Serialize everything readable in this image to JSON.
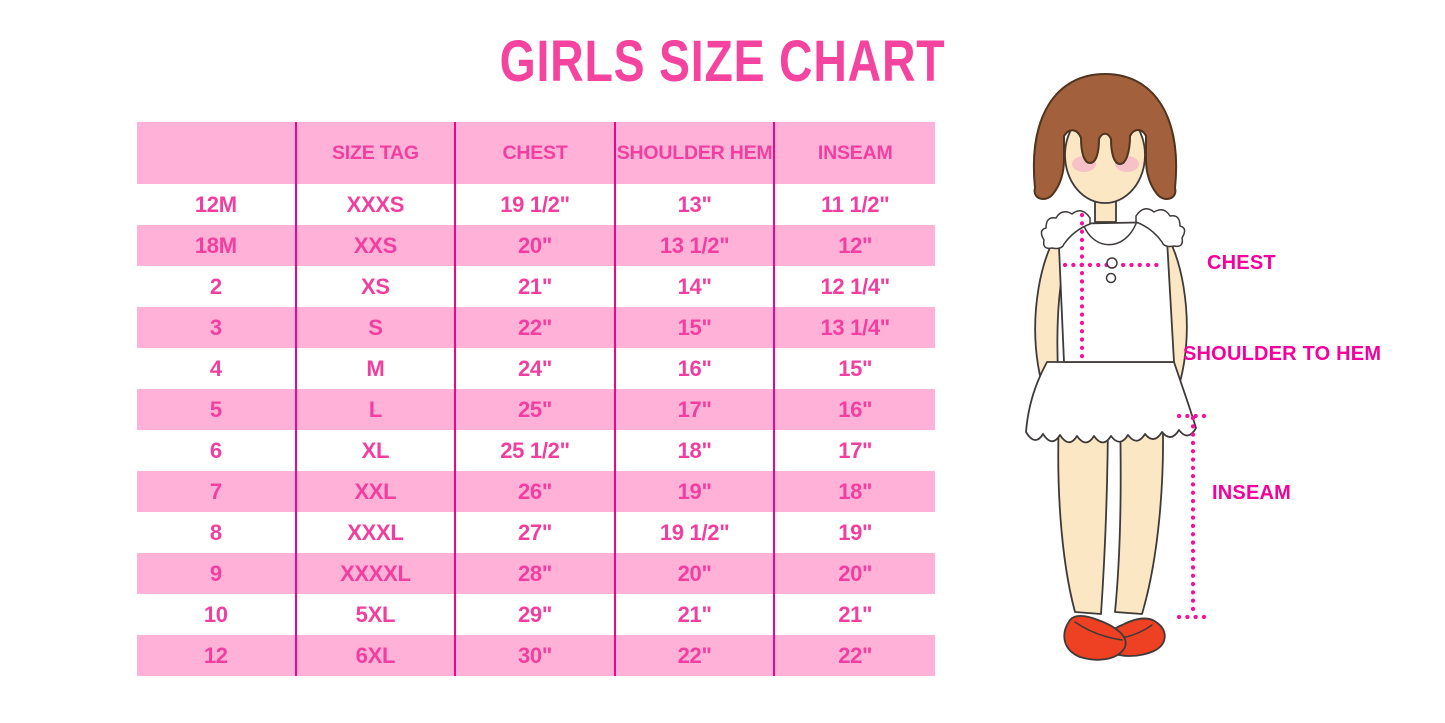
{
  "title": "GIRLS SIZE CHART",
  "colors": {
    "title_pink": "#F5449F",
    "row_band_pink": "#FFB1D8",
    "grid_line_magenta": "#EC068C",
    "table_text_pink": "#F23F9F",
    "figure_label_magenta": "#F4009C",
    "dotted_line_pink": "#F4129B",
    "hair_brown": "#A2613C",
    "hair_outline": "#50341E",
    "skin": "#FBE7C3",
    "blush_pink": "#F5B8C8",
    "shoe_red": "#EE4023",
    "outline_dark": "#3E3A39"
  },
  "chart_data": {
    "type": "table",
    "title": "GIRLS SIZE CHART",
    "columns": [
      "",
      "SIZE TAG",
      "CHEST",
      "SHOULDER HEM",
      "INSEAM"
    ],
    "rows": [
      [
        "12M",
        "XXXS",
        "19 1/2\"",
        "13\"",
        "11 1/2\""
      ],
      [
        "18M",
        "XXS",
        "20\"",
        "13 1/2\"",
        "12\""
      ],
      [
        "2",
        "XS",
        "21\"",
        "14\"",
        "12 1/4\""
      ],
      [
        "3",
        "S",
        "22\"",
        "15\"",
        "13 1/4\""
      ],
      [
        "4",
        "M",
        "24\"",
        "16\"",
        "15\""
      ],
      [
        "5",
        "L",
        "25\"",
        "17\"",
        "16\""
      ],
      [
        "6",
        "XL",
        "25 1/2\"",
        "18\"",
        "17\""
      ],
      [
        "7",
        "XXL",
        "26\"",
        "19\"",
        "18\""
      ],
      [
        "8",
        "XXXL",
        "27\"",
        "19 1/2\"",
        "19\""
      ],
      [
        "9",
        "XXXXL",
        "28\"",
        "20\"",
        "20\""
      ],
      [
        "10",
        "5XL",
        "29\"",
        "21\"",
        "21\""
      ],
      [
        "12",
        "6XL",
        "30\"",
        "22\"",
        "22\""
      ]
    ]
  },
  "figure": {
    "chest_label": "CHEST",
    "shoulder_to_hem_label": "SHOULDER TO HEM",
    "inseam_label": "INSEAM"
  }
}
